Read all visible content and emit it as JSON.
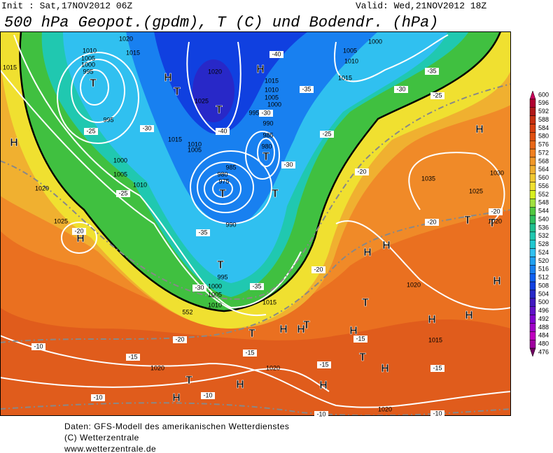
{
  "header": {
    "init": "Init : Sat,17NOV2012 06Z",
    "valid": "Valid: Wed,21NOV2012 18Z",
    "title": "500 hPa Geopot.(gpdm), T (C) und Bodendr. (hPa)"
  },
  "footer": [
    "Daten: GFS-Modell des amerikanischen Wetterdienstes",
    "(C) Wetterzentrale",
    "www.wetterzentrale.de"
  ],
  "colorbar": {
    "values": [
      600,
      596,
      592,
      588,
      584,
      580,
      576,
      572,
      568,
      564,
      560,
      556,
      552,
      548,
      544,
      540,
      536,
      532,
      528,
      524,
      520,
      516,
      512,
      508,
      504,
      500,
      496,
      492,
      488,
      484,
      480,
      476
    ],
    "colors": [
      "#c8005a",
      "#b00030",
      "#b01818",
      "#c83010",
      "#d84010",
      "#e05010",
      "#e86818",
      "#f08020",
      "#f09828",
      "#f0b030",
      "#f0c830",
      "#f0e030",
      "#d8f020",
      "#a0e040",
      "#50c840",
      "#30c060",
      "#20c090",
      "#20c8b0",
      "#20c8d0",
      "#30c0f0",
      "#20a0f0",
      "#1880f0",
      "#1060f0",
      "#1040e0",
      "#2828c8",
      "#4018c0",
      "#6010c8",
      "#8000d0",
      "#a000c8",
      "#c000c0",
      "#a000a0",
      "#700060"
    ]
  },
  "map": {
    "pressure_centers": [
      "H",
      "H",
      "H",
      "H",
      "H",
      "H",
      "H",
      "H",
      "H",
      "H",
      "H",
      "H",
      "H",
      "H",
      "H",
      "H",
      "H",
      "T",
      "T",
      "T",
      "T",
      "T",
      "T",
      "T",
      "T",
      "T",
      "T",
      "T",
      "T",
      "T",
      "T"
    ],
    "isobar_labels": [
      "1010",
      "1005",
      "1000",
      "995",
      "1015",
      "1020",
      "1015",
      "1020",
      "1025",
      "1015",
      "1010",
      "1005",
      "995",
      "1000",
      "1005",
      "1010",
      "1020",
      "1025",
      "1015",
      "1010",
      "1005",
      "1000",
      "995",
      "990",
      "985",
      "980",
      "985",
      "980",
      "975",
      "990",
      "995",
      "1000",
      "1005",
      "1010",
      "1015",
      "1015",
      "1005",
      "1010",
      "1000",
      "1035",
      "1030",
      "1025",
      "1020",
      "1020",
      "1015",
      "1020",
      "1020",
      "1020",
      "552"
    ],
    "temperature_labels": [
      "-40",
      "-35",
      "-30",
      "-30",
      "-40",
      "-35",
      "-35",
      "-30",
      "-25",
      "-30",
      "-25",
      "-20",
      "-25",
      "-20",
      "-35",
      "-30",
      "-25",
      "-20",
      "-20",
      "-20",
      "-20",
      "-15",
      "-15",
      "-15",
      "-15",
      "-15",
      "-10",
      "-10",
      "-10",
      "-10",
      "-10"
    ]
  }
}
